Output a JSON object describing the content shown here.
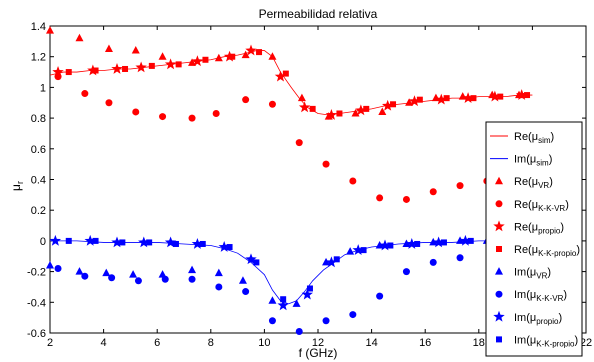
{
  "chart_data": {
    "type": "scatter",
    "title": "Permeabilidad relativa",
    "xlabel": "f (GHz)",
    "ylabel": "μ",
    "ylabel_sub": "r",
    "xlim": [
      2,
      22
    ],
    "ylim": [
      -0.6,
      1.4
    ],
    "xticks": [
      2,
      4,
      6,
      8,
      10,
      12,
      14,
      16,
      18,
      20,
      22
    ],
    "yticks": [
      -0.6,
      -0.4,
      -0.2,
      0,
      0.2,
      0.4,
      0.6,
      0.8,
      1,
      1.2,
      1.4
    ],
    "xtick_labels": [
      "2",
      "4",
      "6",
      "8",
      "10",
      "12",
      "14",
      "16",
      "18",
      "20",
      "22"
    ],
    "ytick_labels": [
      "-0.6",
      "-0.4",
      "-0.2",
      "0",
      "0.2",
      "0.4",
      "0.6",
      "0.8",
      "1",
      "1.2",
      "1.4"
    ],
    "grid": false,
    "legend_position": "right",
    "series": [
      {
        "name": "Re(μsim)",
        "label_main": "Re(μ",
        "label_sub": "sim",
        "label_end": ")",
        "style": "line",
        "color": "#ff0000",
        "x": [
          2.0,
          2.5,
          3.0,
          3.5,
          4.0,
          4.5,
          5.0,
          5.5,
          6.0,
          6.5,
          7.0,
          7.5,
          8.0,
          8.5,
          9.0,
          9.5,
          9.7,
          10.0,
          10.3,
          10.6,
          11.0,
          11.3,
          11.6,
          12.0,
          12.4,
          12.8,
          13.2,
          13.6,
          14.0,
          14.5,
          15.0,
          15.5,
          16.0,
          16.5,
          17.0,
          17.5,
          18.0,
          18.5,
          19.0,
          19.5,
          20.0
        ],
        "y": [
          1.08,
          1.1,
          1.1,
          1.11,
          1.11,
          1.12,
          1.12,
          1.13,
          1.14,
          1.15,
          1.16,
          1.17,
          1.18,
          1.2,
          1.21,
          1.23,
          1.24,
          1.24,
          1.2,
          1.1,
          1.0,
          0.93,
          0.87,
          0.83,
          0.82,
          0.83,
          0.84,
          0.85,
          0.86,
          0.88,
          0.89,
          0.9,
          0.91,
          0.92,
          0.93,
          0.93,
          0.94,
          0.94,
          0.94,
          0.95,
          0.95
        ]
      },
      {
        "name": "Im(μsim)",
        "label_main": "Im(μ",
        "label_sub": "sim",
        "label_end": ")",
        "style": "line",
        "color": "#0000ff",
        "x": [
          2.0,
          3.0,
          4.0,
          5.0,
          6.0,
          7.0,
          8.0,
          8.5,
          9.0,
          9.5,
          10.0,
          10.3,
          10.6,
          10.9,
          11.2,
          11.5,
          11.8,
          12.2,
          12.6,
          13.0,
          13.5,
          14.0,
          14.5,
          15.0,
          16.0,
          17.0,
          18.0,
          19.0,
          20.0
        ],
        "y": [
          0.0,
          0.0,
          -0.01,
          -0.01,
          -0.01,
          -0.02,
          -0.03,
          -0.05,
          -0.08,
          -0.14,
          -0.22,
          -0.32,
          -0.39,
          -0.41,
          -0.39,
          -0.33,
          -0.26,
          -0.19,
          -0.14,
          -0.09,
          -0.06,
          -0.04,
          -0.03,
          -0.02,
          -0.01,
          -0.01,
          0.0,
          0.0,
          0.0
        ]
      },
      {
        "name": "Re(μVR)",
        "label_main": "Re(μ",
        "label_sub": "VR",
        "label_end": ")",
        "style": "marker",
        "marker": "triangle",
        "color": "#ff0000",
        "x": [
          2.0,
          3.1,
          4.2,
          5.2,
          6.2,
          7.3,
          8.3,
          9.3,
          10.3,
          11.4,
          12.4,
          13.4,
          14.4,
          15.4,
          16.4,
          17.4,
          18.5,
          19.5
        ],
        "y": [
          1.37,
          1.32,
          1.25,
          1.24,
          1.2,
          1.16,
          1.19,
          1.21,
          1.2,
          0.93,
          0.81,
          0.83,
          0.84,
          0.9,
          0.93,
          0.94,
          0.95,
          0.95
        ]
      },
      {
        "name": "Re(μK-K-VR)",
        "label_main": "Re(μ",
        "label_sub": "K-K-VR",
        "label_end": ")",
        "style": "marker",
        "marker": "circle",
        "color": "#ff0000",
        "x": [
          2.3,
          3.3,
          4.2,
          5.2,
          6.2,
          7.3,
          8.2,
          9.3,
          10.3,
          11.3,
          12.3,
          13.3,
          14.3,
          15.3,
          16.3,
          17.3,
          18.3,
          19.3
        ],
        "y": [
          1.07,
          0.96,
          0.9,
          0.84,
          0.81,
          0.8,
          0.83,
          0.92,
          0.89,
          0.64,
          0.5,
          0.39,
          0.28,
          0.27,
          0.32,
          0.36,
          0.39,
          0.41
        ]
      },
      {
        "name": "Re(μpropio)",
        "label_main": "Re(μ",
        "label_sub": "propio",
        "label_end": ")",
        "style": "marker",
        "marker": "star",
        "color": "#ff0000",
        "x": [
          2.3,
          3.6,
          4.5,
          5.4,
          6.5,
          7.5,
          8.7,
          9.5,
          10.6,
          11.5,
          12.5,
          13.6,
          14.6,
          15.6,
          16.6,
          17.6,
          18.6,
          19.6
        ],
        "y": [
          1.1,
          1.11,
          1.12,
          1.13,
          1.15,
          1.17,
          1.2,
          1.24,
          1.07,
          0.87,
          0.82,
          0.85,
          0.88,
          0.91,
          0.92,
          0.93,
          0.94,
          0.95
        ]
      },
      {
        "name": "Re(μK-K-propio)",
        "label_main": "Re(μ",
        "label_sub": "K-K-propio",
        "label_end": ")",
        "style": "marker",
        "marker": "square",
        "color": "#ff0000",
        "x": [
          2.7,
          3.7,
          4.8,
          5.8,
          6.8,
          7.8,
          8.8,
          9.8,
          10.8,
          11.8,
          12.8,
          13.8,
          14.8,
          15.8,
          16.8,
          17.8,
          18.8,
          19.8
        ],
        "y": [
          1.1,
          1.11,
          1.12,
          1.14,
          1.15,
          1.18,
          1.2,
          1.23,
          1.09,
          0.86,
          0.83,
          0.86,
          0.89,
          0.92,
          0.93,
          0.93,
          0.94,
          0.95
        ]
      },
      {
        "name": "Im(μVR)",
        "label_main": "Im(μ",
        "label_sub": "VR",
        "label_end": ")",
        "style": "marker",
        "marker": "triangle",
        "color": "#0000ff",
        "x": [
          2.0,
          3.1,
          4.1,
          5.1,
          6.2,
          7.3,
          8.3,
          9.2,
          10.3,
          11.2,
          12.3,
          13.2,
          14.3,
          15.3,
          16.3,
          17.3,
          18.3,
          19.3
        ],
        "y": [
          -0.16,
          -0.2,
          -0.21,
          -0.22,
          -0.22,
          -0.19,
          -0.21,
          -0.26,
          -0.39,
          -0.41,
          -0.14,
          -0.07,
          -0.03,
          -0.02,
          -0.01,
          0.0,
          0.0,
          0.0
        ]
      },
      {
        "name": "Im(μK-K-VR)",
        "label_main": "Im(μ",
        "label_sub": "K-K-VR",
        "label_end": ")",
        "style": "marker",
        "marker": "circle",
        "color": "#0000ff",
        "x": [
          2.3,
          3.3,
          4.3,
          5.3,
          6.3,
          7.3,
          8.3,
          9.3,
          10.3,
          11.3,
          12.3,
          13.3,
          14.3,
          15.3,
          16.3,
          17.3
        ],
        "y": [
          -0.18,
          -0.23,
          -0.24,
          -0.26,
          -0.25,
          -0.25,
          -0.3,
          -0.33,
          -0.52,
          -0.59,
          -0.52,
          -0.48,
          -0.36,
          -0.2,
          -0.14,
          -0.11
        ]
      },
      {
        "name": "Im(μpropio)",
        "label_main": "Im(μ",
        "label_sub": "propio",
        "label_end": ")",
        "style": "marker",
        "marker": "star",
        "color": "#0000ff",
        "x": [
          2.2,
          3.5,
          4.5,
          5.5,
          6.5,
          7.5,
          8.5,
          9.5,
          10.7,
          11.6,
          12.5,
          13.5,
          14.5,
          15.5,
          16.5,
          17.5,
          18.5,
          19.5
        ],
        "y": [
          0.0,
          0.0,
          -0.01,
          -0.01,
          -0.01,
          -0.02,
          -0.04,
          -0.12,
          -0.42,
          -0.35,
          -0.14,
          -0.06,
          -0.03,
          -0.02,
          -0.01,
          0.0,
          0.0,
          0.0
        ]
      },
      {
        "name": "Im(μK-K-propio)",
        "label_main": "Im(μ",
        "label_sub": "K-K-propio",
        "label_end": ")",
        "style": "marker",
        "marker": "square",
        "color": "#0000ff",
        "x": [
          2.7,
          3.7,
          4.7,
          5.7,
          6.7,
          7.7,
          8.7,
          9.7,
          10.7,
          11.7,
          12.7,
          13.7,
          14.7,
          15.7,
          16.7,
          17.7,
          18.7,
          19.7
        ],
        "y": [
          0.0,
          0.0,
          -0.01,
          -0.01,
          -0.02,
          -0.02,
          -0.04,
          -0.14,
          -0.38,
          -0.31,
          -0.12,
          -0.06,
          -0.03,
          -0.02,
          -0.01,
          0.0,
          0.0,
          -0.01
        ]
      }
    ]
  }
}
